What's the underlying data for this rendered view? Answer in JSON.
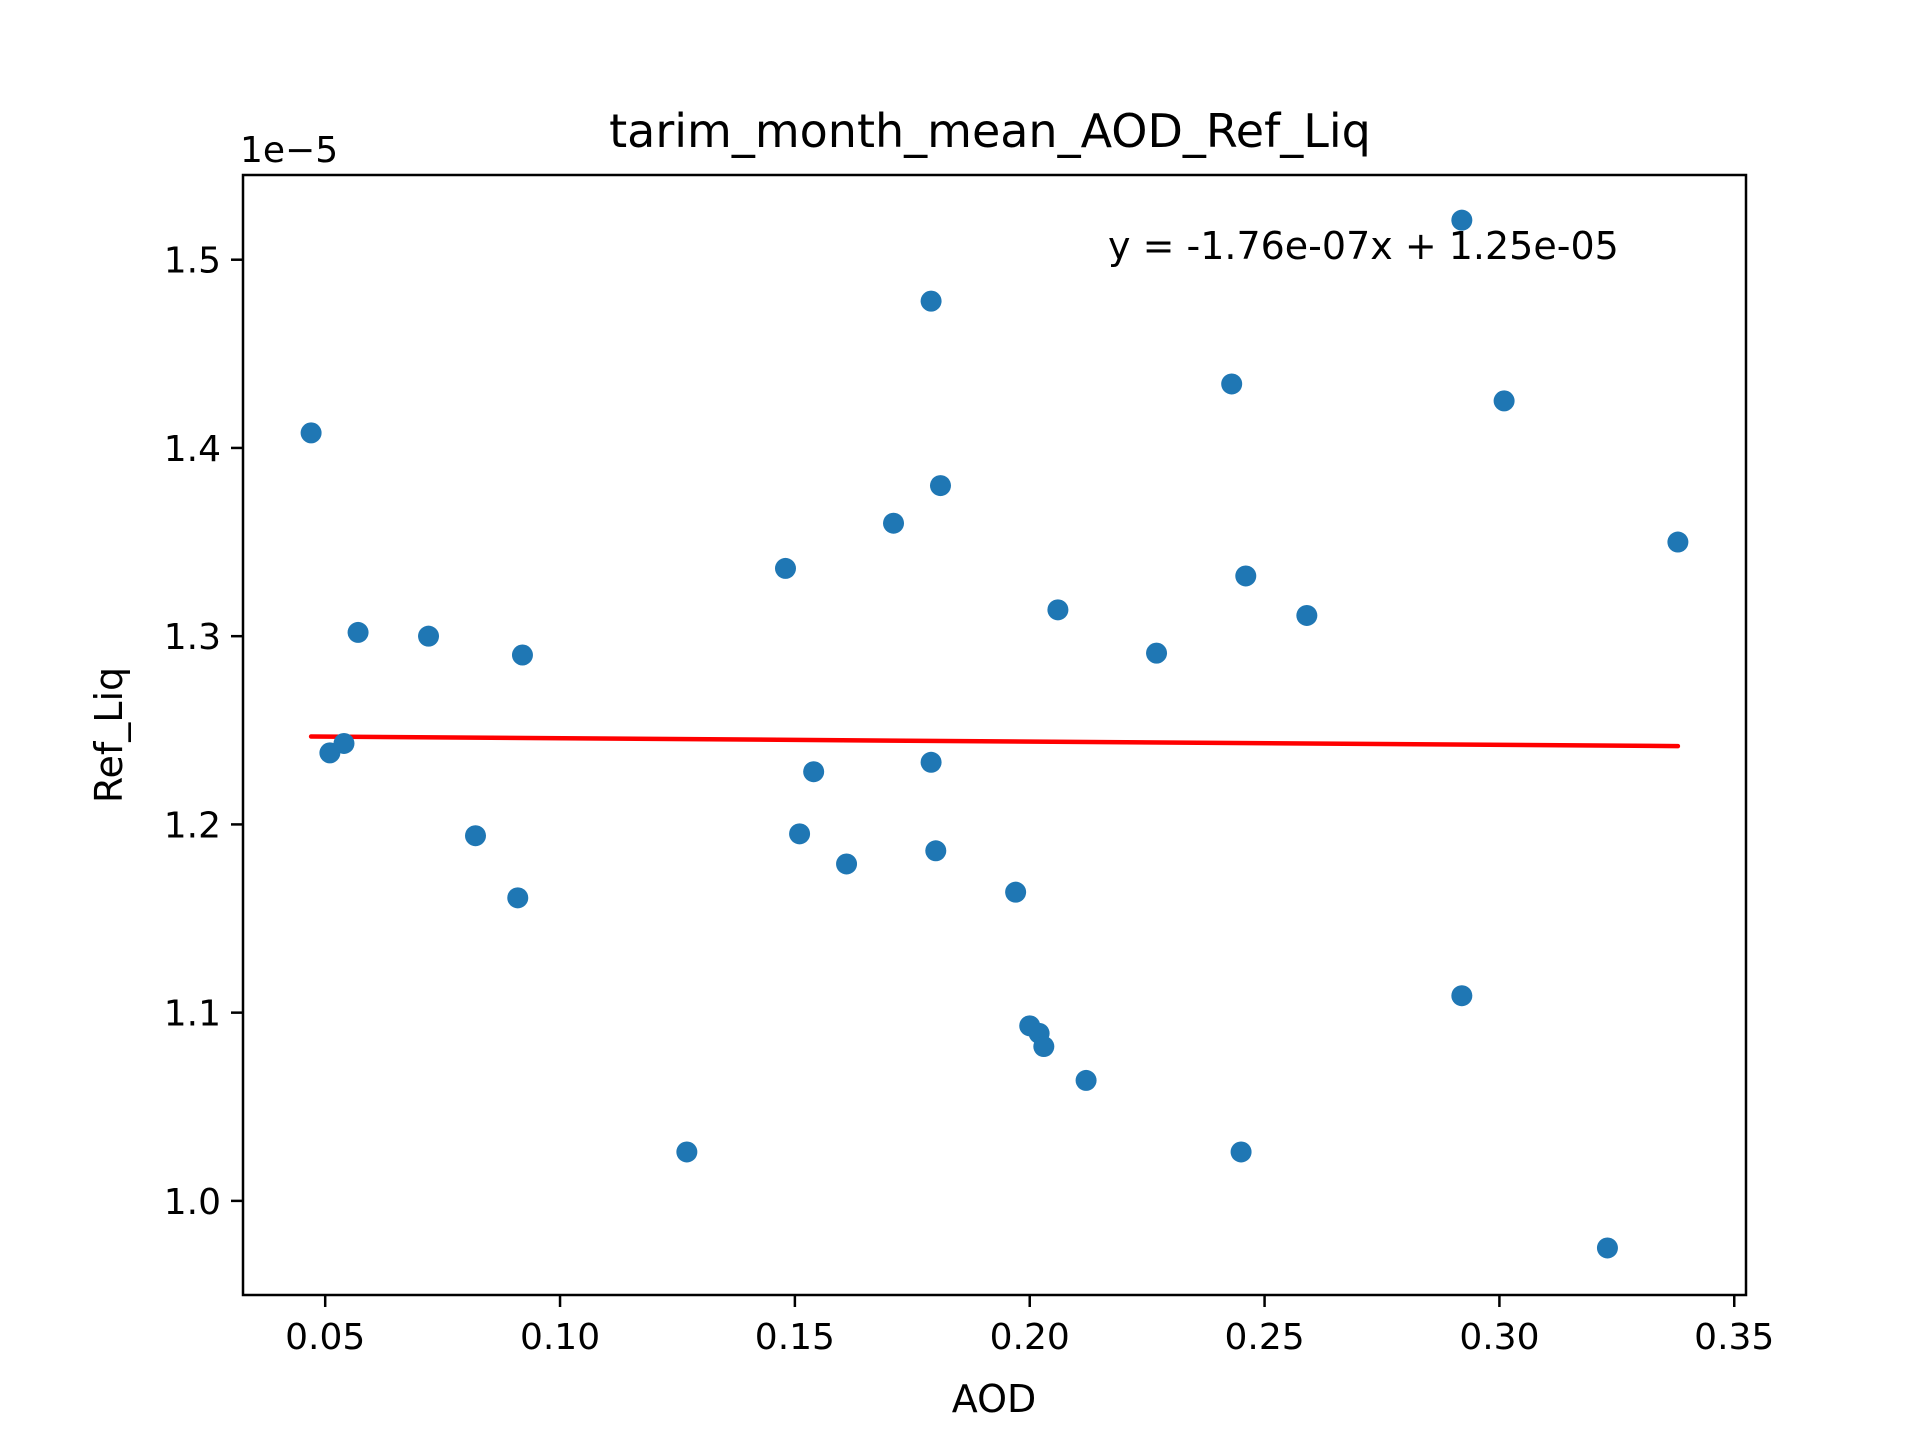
{
  "chart_data": {
    "type": "scatter",
    "title": "tarim_month_mean_AOD_Ref_Liq",
    "xlabel": "AOD",
    "ylabel": "Ref_Liq",
    "y_offset_label": "1e−5",
    "xlim": [
      0.0325,
      0.3525
    ],
    "ylim": [
      0.95,
      1.545
    ],
    "x_ticks": [
      0.05,
      0.1,
      0.15,
      0.2,
      0.25,
      0.3,
      0.35
    ],
    "x_tick_labels": [
      "0.05",
      "0.10",
      "0.15",
      "0.20",
      "0.25",
      "0.30",
      "0.35"
    ],
    "y_ticks": [
      1.0,
      1.1,
      1.2,
      1.3,
      1.4,
      1.5
    ],
    "y_tick_labels": [
      "1.0",
      "1.1",
      "1.2",
      "1.3",
      "1.4",
      "1.5"
    ],
    "grid": false,
    "points": {
      "x": [
        0.047,
        0.051,
        0.054,
        0.057,
        0.072,
        0.082,
        0.091,
        0.092,
        0.127,
        0.148,
        0.151,
        0.154,
        0.161,
        0.171,
        0.179,
        0.179,
        0.18,
        0.181,
        0.197,
        0.2,
        0.202,
        0.203,
        0.206,
        0.212,
        0.227,
        0.243,
        0.245,
        0.246,
        0.259,
        0.292,
        0.292,
        0.301,
        0.323,
        0.338
      ],
      "y": [
        1.408,
        1.238,
        1.243,
        1.302,
        1.3,
        1.194,
        1.161,
        1.29,
        1.026,
        1.336,
        1.195,
        1.228,
        1.179,
        1.36,
        1.233,
        1.478,
        1.186,
        1.38,
        1.164,
        1.093,
        1.089,
        1.082,
        1.314,
        1.064,
        1.291,
        1.434,
        1.026,
        1.332,
        1.311,
        1.109,
        1.521,
        1.425,
        0.975,
        1.35
      ],
      "color": "#1f77b4"
    },
    "fit_line": {
      "x": [
        0.047,
        0.338
      ],
      "y": [
        1.2467,
        1.2416
      ],
      "color": "#ff0000"
    },
    "annotation": "y = -1.76e-07x + 1.25e-05"
  }
}
